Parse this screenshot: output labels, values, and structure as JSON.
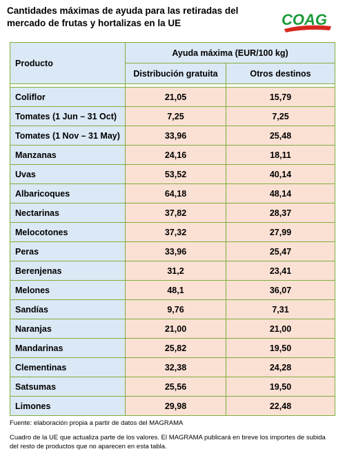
{
  "title": "Cantidades máximas de ayuda para las retiradas del mercado de frutas y hortalizas en la UE",
  "logo": {
    "text": "COAG",
    "accent": "#1a9a3a",
    "stripe": "#d6281f"
  },
  "table": {
    "header_product": "Producto",
    "header_group": "Ayuda máxima (EUR/100 kg)",
    "header_col1": "Distribución gratuita",
    "header_col2": "Otros destinos",
    "rows": [
      {
        "product": "Coliflor",
        "gratuita": "21,05",
        "otros": "15,79"
      },
      {
        "product": "Tomates (1 Jun – 31 Oct)",
        "gratuita": "7,25",
        "otros": "7,25"
      },
      {
        "product": "Tomates (1 Nov – 31 May)",
        "gratuita": "33,96",
        "otros": "25,48"
      },
      {
        "product": "Manzanas",
        "gratuita": "24,16",
        "otros": "18,11"
      },
      {
        "product": "Uvas",
        "gratuita": "53,52",
        "otros": "40,14"
      },
      {
        "product": "Albaricoques",
        "gratuita": "64,18",
        "otros": "48,14"
      },
      {
        "product": "Nectarinas",
        "gratuita": "37,82",
        "otros": "28,37"
      },
      {
        "product": "Melocotones",
        "gratuita": "37,32",
        "otros": "27,99"
      },
      {
        "product": "Peras",
        "gratuita": "33,96",
        "otros": "25,47"
      },
      {
        "product": "Berenjenas",
        "gratuita": "31,2",
        "otros": "23,41"
      },
      {
        "product": "Melones",
        "gratuita": "48,1",
        "otros": "36,07"
      },
      {
        "product": "Sandías",
        "gratuita": "9,76",
        "otros": "7,31"
      },
      {
        "product": "Naranjas",
        "gratuita": "21,00",
        "otros": "21,00"
      },
      {
        "product": "Mandarinas",
        "gratuita": "25,82",
        "otros": "19,50"
      },
      {
        "product": "Clementinas",
        "gratuita": "32,38",
        "otros": "24,28"
      },
      {
        "product": "Satsumas",
        "gratuita": "25,56",
        "otros": "19,50"
      },
      {
        "product": "Limones",
        "gratuita": "29,98",
        "otros": "22,48"
      }
    ]
  },
  "source": "Fuente: elaboración propia a partir de datos del MAGRAMA",
  "note": "Cuadro de la UE  que actualiza parte de los valores. El MAGRAMA publicará en breve los importes de subida del resto de productos  que no aparecen en esta tabla."
}
